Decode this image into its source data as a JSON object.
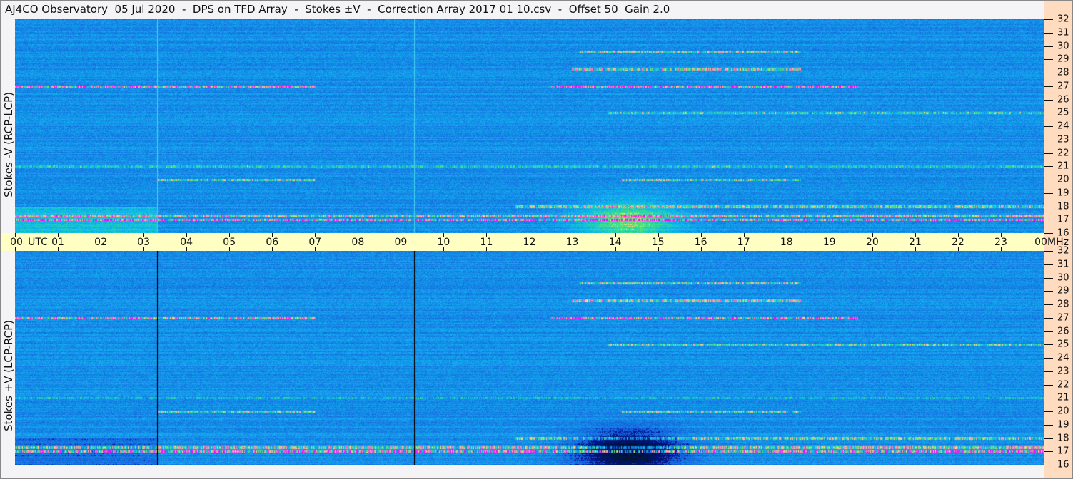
{
  "title": "AJ4CO Observatory  05 Jul 2020  -  DPS on TFD Array  -  Stokes ±V  -  Correction Array 2017 01 10.csv  -  Offset 50  Gain 2.0",
  "chart_data": {
    "type": "heatmap",
    "panels": [
      {
        "ylabel": "Stokes -V (RCP-LCP)"
      },
      {
        "ylabel": "Stokes +V (LCP-RCP)"
      }
    ],
    "x_ticks": [
      "00",
      "01",
      "02",
      "03",
      "04",
      "05",
      "06",
      "07",
      "08",
      "09",
      "10",
      "11",
      "12",
      "13",
      "14",
      "15",
      "16",
      "17",
      "18",
      "19",
      "20",
      "21",
      "22",
      "23",
      "00"
    ],
    "x_unit": "UTC",
    "y_ticks": [
      "16",
      "17",
      "18",
      "19",
      "20",
      "21",
      "22",
      "23",
      "24",
      "25",
      "26",
      "27",
      "28",
      "29",
      "30",
      "31",
      "32"
    ],
    "y_unit": "MHz",
    "ylim": [
      16,
      32
    ],
    "colors": {
      "background": "#1f63d8",
      "time_axis": "#ffffc4",
      "freq_axis": "#ffdcc0"
    }
  }
}
